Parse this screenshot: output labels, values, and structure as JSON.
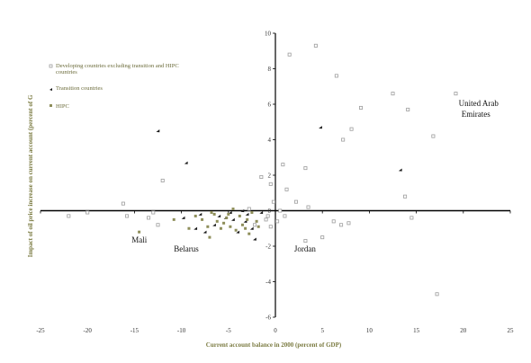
{
  "chart_data": {
    "type": "scatter",
    "xlabel": "Current account balance in 2000 (percent of GDP)",
    "ylabel": "Impact of oil price increase on current account (percent of G",
    "xlim": [
      -25,
      25
    ],
    "ylim": [
      -6,
      10
    ],
    "x_ticks": [
      "-25",
      "-20",
      "-15",
      "-10",
      "-5",
      "0",
      "5",
      "10",
      "15",
      "20",
      "25"
    ],
    "y_ticks": [
      "-6",
      "-4",
      "-2",
      "0",
      "2",
      "4",
      "6",
      "8",
      "10"
    ],
    "legend_position": "top-left",
    "series": [
      {
        "name": "Developing countries excluding transition and HIPC countries",
        "color": "#9c9c9c",
        "marker": "square-open",
        "points": [
          [
            1.5,
            8.8
          ],
          [
            4.3,
            9.3
          ],
          [
            6.5,
            7.6
          ],
          [
            12.5,
            6.6
          ],
          [
            19.2,
            6.6
          ],
          [
            14.1,
            5.7
          ],
          [
            9.1,
            5.8
          ],
          [
            8.1,
            4.6
          ],
          [
            7.2,
            4.0
          ],
          [
            16.8,
            4.2
          ],
          [
            3.2,
            2.4
          ],
          [
            0.8,
            2.6
          ],
          [
            1.2,
            1.2
          ],
          [
            -12,
            1.7
          ],
          [
            -16.2,
            0.4
          ],
          [
            -22,
            -0.3
          ],
          [
            -20,
            -0.1
          ],
          [
            -15.8,
            -0.3
          ],
          [
            -13.5,
            -0.4
          ],
          [
            -12.5,
            -0.8
          ],
          [
            2.2,
            0.5
          ],
          [
            3.5,
            0.2
          ],
          [
            6.2,
            -0.6
          ],
          [
            7.0,
            -0.8
          ],
          [
            5.0,
            -1.5
          ],
          [
            3.2,
            -1.7
          ],
          [
            13.8,
            0.8
          ],
          [
            14.5,
            -0.4
          ],
          [
            17.2,
            -4.7
          ],
          [
            -1.5,
            1.9
          ],
          [
            -0.5,
            1.5
          ],
          [
            0.5,
            0.0
          ],
          [
            -0.8,
            -0.3
          ],
          [
            0.2,
            -0.6
          ],
          [
            -2.2,
            -0.8
          ],
          [
            1.0,
            -0.3
          ],
          [
            7.8,
            -0.7
          ],
          [
            -13.0,
            -0.1
          ],
          [
            -0.2,
            0.5
          ],
          [
            -1.0,
            -0.5
          ],
          [
            -2.8,
            0.1
          ],
          [
            -0.5,
            -0.9
          ]
        ]
      },
      {
        "name": "Transition countries",
        "color": "#1a1a1a",
        "marker": "triangle",
        "points": [
          [
            -12.5,
            4.5
          ],
          [
            -9.5,
            2.7
          ],
          [
            4.8,
            4.7
          ],
          [
            13.3,
            2.3
          ],
          [
            -9.8,
            -0.4
          ],
          [
            -8.0,
            -0.2
          ],
          [
            -7.5,
            -1.2
          ],
          [
            -6.5,
            -0.8
          ],
          [
            -5.3,
            -0.4
          ],
          [
            -4.5,
            -0.5
          ],
          [
            -4.0,
            -1.2
          ],
          [
            -3.5,
            0.0
          ],
          [
            -3.2,
            -0.6
          ],
          [
            -2.5,
            -1.0
          ],
          [
            -2.2,
            -1.6
          ],
          [
            -1.5,
            -0.1
          ],
          [
            -8.5,
            -1.0
          ],
          [
            -4.8,
            -0.1
          ],
          [
            -6.0,
            -0.3
          ],
          [
            -3.0,
            -0.2
          ]
        ]
      },
      {
        "name": "HIPC",
        "color": "#8e8e5a",
        "marker": "square-small",
        "points": [
          [
            -14.5,
            -1.2
          ],
          [
            -10.8,
            -0.5
          ],
          [
            -9.2,
            -1.0
          ],
          [
            -8.5,
            -0.3
          ],
          [
            -7.8,
            -0.5
          ],
          [
            -7.2,
            -0.9
          ],
          [
            -7.0,
            -1.5
          ],
          [
            -6.8,
            -0.1
          ],
          [
            -6.2,
            -0.6
          ],
          [
            -5.8,
            -1.0
          ],
          [
            -5.5,
            -0.7
          ],
          [
            -5.0,
            -0.2
          ],
          [
            -4.8,
            -0.9
          ],
          [
            -4.2,
            -1.1
          ],
          [
            -3.8,
            -0.3
          ],
          [
            -3.5,
            -0.8
          ],
          [
            -3.0,
            -0.5
          ],
          [
            -2.8,
            -1.3
          ],
          [
            -2.5,
            -0.1
          ],
          [
            -2.0,
            -0.6
          ],
          [
            -1.8,
            -0.9
          ],
          [
            -6.5,
            -0.2
          ],
          [
            -5.2,
            -0.4
          ],
          [
            -4.5,
            0.1
          ],
          [
            -3.2,
            -1.0
          ]
        ]
      }
    ],
    "annotations": [
      {
        "text": "United Arab",
        "x": 19.5,
        "y": 5.9
      },
      {
        "text": "Emirates",
        "x": 19.8,
        "y": 5.3
      },
      {
        "text": "Mali",
        "x": -15.3,
        "y": -1.8
      },
      {
        "text": "Belarus",
        "x": -10.8,
        "y": -2.3
      },
      {
        "text": "Jordan",
        "x": 2.0,
        "y": -2.3
      }
    ]
  }
}
